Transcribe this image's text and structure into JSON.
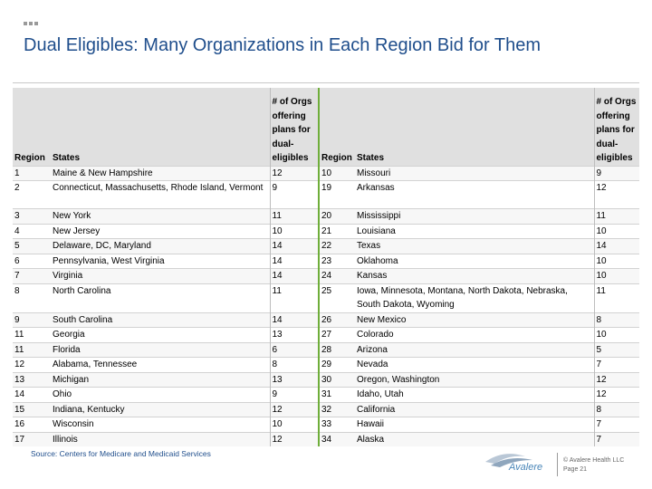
{
  "slide": {
    "title": "Dual Eligibles: Many Organizations in Each Region Bid for Them",
    "source": "Source: Centers for Medicare and Medicaid Services",
    "logo_text": "Avalere",
    "copyright": "© Avalere Health LLC",
    "page": "Page 21"
  },
  "table": {
    "headers": [
      "Region",
      "States",
      "# of Orgs offering plans for dual-eligibles",
      "Region",
      "States",
      "# of Orgs offering plans for dual-eligibles"
    ],
    "rows": [
      [
        "1",
        "Maine & New Hampshire",
        "12",
        "10",
        "Missouri",
        "9"
      ],
      [
        "2",
        "Connecticut, Massachusetts, Rhode Island, Vermont",
        "9",
        "19",
        "Arkansas",
        "12"
      ],
      [
        "3",
        "New York",
        "11",
        "20",
        "Mississippi",
        "11"
      ],
      [
        "4",
        "New Jersey",
        "10",
        "21",
        "Louisiana",
        "10"
      ],
      [
        "5",
        "Delaware, DC, Maryland",
        "14",
        "22",
        "Texas",
        "14"
      ],
      [
        "6",
        "Pennsylvania, West Virginia",
        "14",
        "23",
        "Oklahoma",
        "10"
      ],
      [
        "7",
        "Virginia",
        "14",
        "24",
        "Kansas",
        "10"
      ],
      [
        "8",
        "North Carolina",
        "11",
        "25",
        "Iowa, Minnesota, Montana, North Dakota, Nebraska, South Dakota, Wyoming",
        "11"
      ],
      [
        "9",
        "South Carolina",
        "14",
        "26",
        "New Mexico",
        "8"
      ],
      [
        "11",
        "Georgia",
        "13",
        "27",
        "Colorado",
        "10"
      ],
      [
        "11",
        "Florida",
        "6",
        "28",
        "Arizona",
        "5"
      ],
      [
        "12",
        "Alabama, Tennessee",
        "8",
        "29",
        "Nevada",
        "7"
      ],
      [
        "13",
        "Michigan",
        "13",
        "30",
        "Oregon, Washington",
        "12"
      ],
      [
        "14",
        "Ohio",
        "9",
        "31",
        "Idaho, Utah",
        "12"
      ],
      [
        "15",
        "Indiana, Kentucky",
        "12",
        "32",
        "California",
        "8"
      ],
      [
        "16",
        "Wisconsin",
        "10",
        "33",
        "Hawaii",
        "7"
      ],
      [
        "17",
        "Illinois",
        "12",
        "34",
        "Alaska",
        "7"
      ]
    ]
  }
}
